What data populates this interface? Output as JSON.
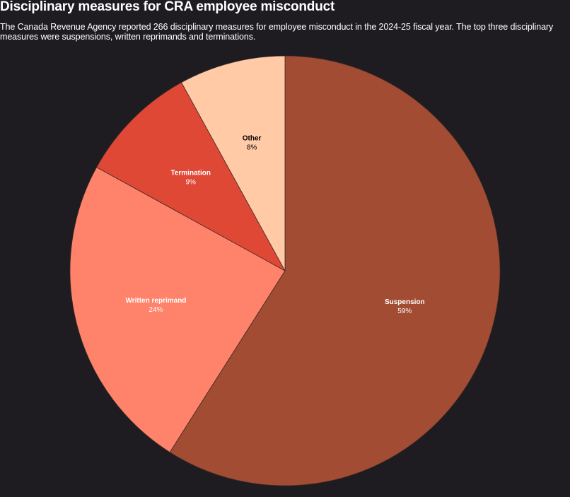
{
  "header": {
    "title": "Disciplinary measures for CRA employee misconduct",
    "subtitle": "The Canada Revenue Agency reported 266 disciplinary measures for employee misconduct in the 2024-25 fiscal year. The top three disciplinary measures were suspensions, written reprimands and terminations."
  },
  "chart_data": {
    "type": "pie",
    "title": "Disciplinary measures for CRA employee misconduct",
    "subtitle": "The Canada Revenue Agency reported 266 disciplinary measures for employee misconduct in the 2024-25 fiscal year. The top three disciplinary measures were suspensions, written reprimands and terminations.",
    "categories": [
      "Suspension",
      "Written reprimand",
      "Termination",
      "Other"
    ],
    "values": [
      59,
      24,
      9,
      8
    ],
    "labels": [
      "59%",
      "24%",
      "9%",
      "8%"
    ],
    "unit": "%",
    "colors": [
      "#a24c33",
      "#ff826a",
      "#e04836",
      "#ffcaa5"
    ],
    "label_colors": [
      "#ffffff",
      "#ffffff",
      "#ffffff",
      "#000000"
    ],
    "legend": "none",
    "background": "#1e1c21"
  }
}
